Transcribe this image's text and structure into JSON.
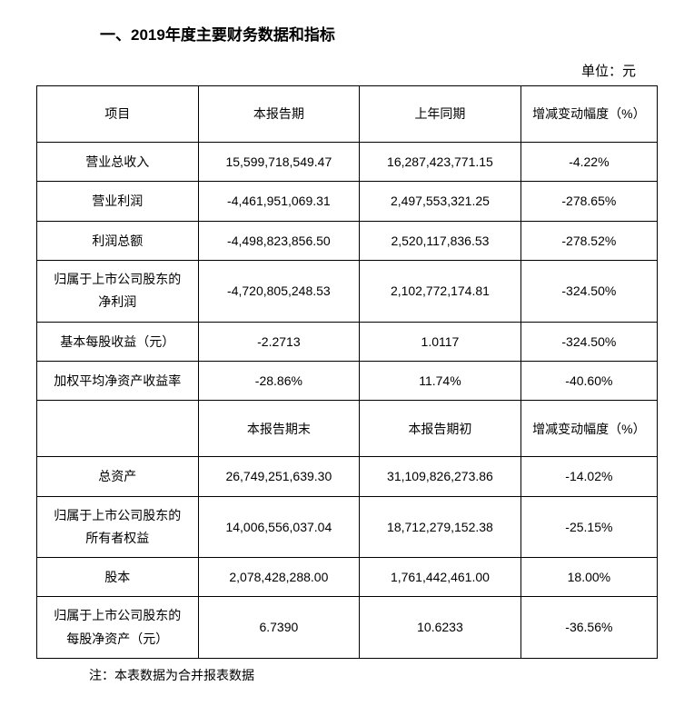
{
  "title": "一、2019年度主要财务数据和指标",
  "unit": "单位：元",
  "table": {
    "header1": {
      "c0": "项目",
      "c1": "本报告期",
      "c2": "上年同期",
      "c3": "增减变动幅度（%）"
    },
    "rows1": [
      {
        "item": "营业总收入",
        "curr": "15,599,718,549.47",
        "prev": "16,287,423,771.15",
        "change": "-4.22%"
      },
      {
        "item": "营业利润",
        "curr": "-4,461,951,069.31",
        "prev": "2,497,553,321.25",
        "change": "-278.65%"
      },
      {
        "item": "利润总额",
        "curr": "-4,498,823,856.50",
        "prev": "2,520,117,836.53",
        "change": "-278.52%"
      },
      {
        "item": "归属于上市公司股东的\n净利润",
        "curr": "-4,720,805,248.53",
        "prev": "2,102,772,174.81",
        "change": "-324.50%"
      },
      {
        "item": "基本每股收益（元）",
        "curr": "-2.2713",
        "prev": "1.0117",
        "change": "-324.50%"
      },
      {
        "item": "加权平均净资产收益率",
        "curr": "-28.86%",
        "prev": "11.74%",
        "change": "-40.60%"
      }
    ],
    "header2": {
      "c0": "",
      "c1": "本报告期末",
      "c2": "本报告期初",
      "c3": "增减变动幅度（%）"
    },
    "rows2": [
      {
        "item": "总资产",
        "curr": "26,749,251,639.30",
        "prev": "31,109,826,273.86",
        "change": "-14.02%"
      },
      {
        "item": "归属于上市公司股东的\n所有者权益",
        "curr": "14,006,556,037.04",
        "prev": "18,712,279,152.38",
        "change": "-25.15%"
      },
      {
        "item": "股本",
        "curr": "2,078,428,288.00",
        "prev": "1,761,442,461.00",
        "change": "18.00%"
      },
      {
        "item": "归属于上市公司股东的\n每股净资产（元）",
        "curr": "6.7390",
        "prev": "10.6233",
        "change": "-36.56%"
      }
    ]
  },
  "footnote": "注：本表数据为合并报表数据",
  "colors": {
    "text": "#000000",
    "border": "#000000",
    "background": "#ffffff"
  },
  "typography": {
    "title_fontsize": 17,
    "body_fontsize": 14,
    "unit_fontsize": 15
  }
}
